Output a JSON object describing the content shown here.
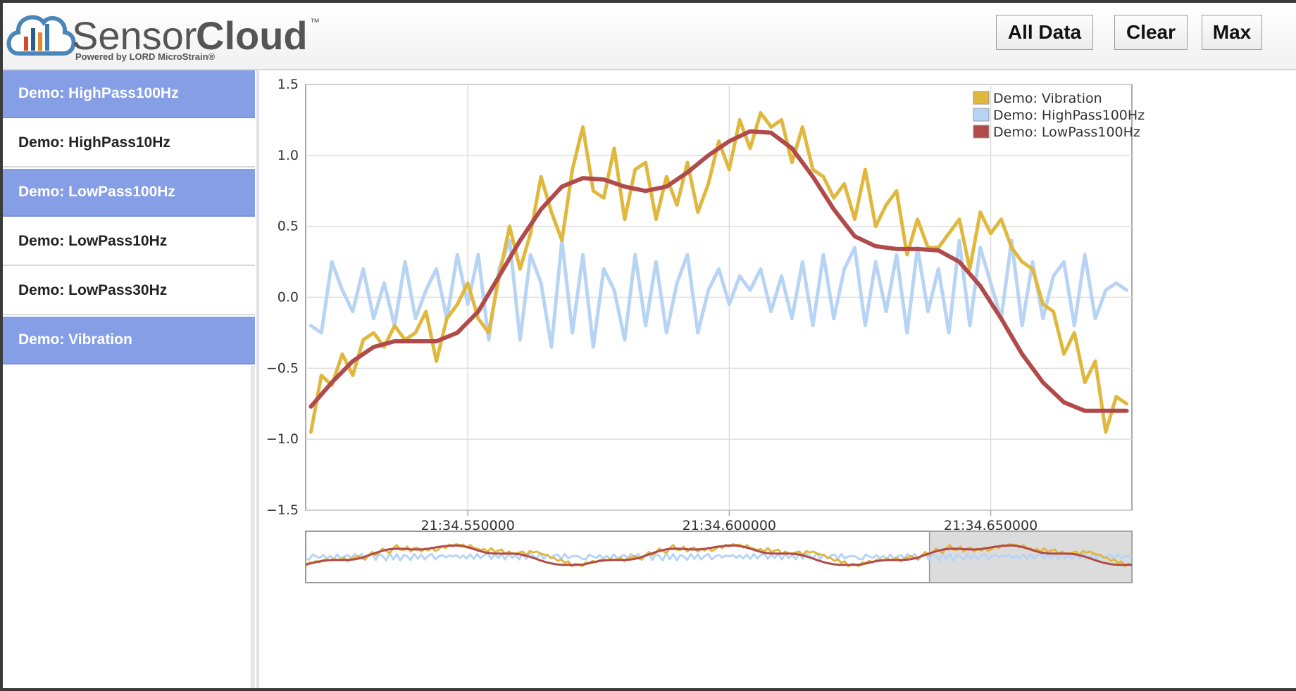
{
  "app": {
    "brand_light": "Sensor",
    "brand_bold": "Cloud",
    "brand_tm": "™",
    "powered_by": "Powered by LORD MicroStrain®"
  },
  "toolbar": {
    "all_data": "All Data",
    "clear": "Clear",
    "max": "Max"
  },
  "sidebar": {
    "items": [
      {
        "label": "Demo: HighPass100Hz",
        "selected": true
      },
      {
        "label": "Demo: HighPass10Hz",
        "selected": false
      },
      {
        "label": "Demo: LowPass100Hz",
        "selected": true
      },
      {
        "label": "Demo: LowPass10Hz",
        "selected": false
      },
      {
        "label": "Demo: LowPass30Hz",
        "selected": false
      },
      {
        "label": "Demo: Vibration",
        "selected": true
      }
    ]
  },
  "colors": {
    "selected_item": "#869ee6",
    "vibration": "#e0b83e",
    "highpass100": "#b8d4f5",
    "lowpass100": "#b14b4b",
    "navigator_window": "#dcdcdc"
  },
  "chart_data": {
    "type": "line",
    "ylim": [
      -1.5,
      1.5
    ],
    "y_ticks": [
      "1.5",
      "1.0",
      "0.5",
      "0.0",
      "−0.5",
      "−1.0",
      "−1.5"
    ],
    "x_ticks": [
      "21:34.550000",
      "21:34.600000",
      "21:34.650000"
    ],
    "x_tick_values": [
      34.55,
      34.6,
      34.65
    ],
    "xlim": [
      34.519,
      34.677
    ],
    "grid": true,
    "legend_position": "top-right",
    "series": [
      {
        "name": "Demo: Vibration",
        "color": "#e0b83e",
        "x": [
          34.52,
          34.522,
          34.524,
          34.526,
          34.528,
          34.53,
          34.532,
          34.534,
          34.536,
          34.538,
          34.54,
          34.542,
          34.544,
          34.546,
          34.548,
          34.55,
          34.552,
          34.554,
          34.556,
          34.558,
          34.56,
          34.562,
          34.564,
          34.566,
          34.568,
          34.57,
          34.572,
          34.574,
          34.576,
          34.578,
          34.58,
          34.582,
          34.584,
          34.586,
          34.588,
          34.59,
          34.592,
          34.594,
          34.596,
          34.598,
          34.6,
          34.602,
          34.604,
          34.606,
          34.608,
          34.61,
          34.612,
          34.614,
          34.616,
          34.618,
          34.62,
          34.622,
          34.624,
          34.626,
          34.628,
          34.63,
          34.632,
          34.634,
          34.636,
          34.638,
          34.64,
          34.642,
          34.644,
          34.646,
          34.648,
          34.65,
          34.652,
          34.654,
          34.656,
          34.658,
          34.66,
          34.662,
          34.664,
          34.666,
          34.668,
          34.67,
          34.672,
          34.674,
          34.676
        ],
        "values": [
          -0.95,
          -0.55,
          -0.62,
          -0.4,
          -0.55,
          -0.3,
          -0.25,
          -0.35,
          -0.2,
          -0.3,
          -0.25,
          -0.1,
          -0.45,
          -0.15,
          -0.05,
          0.1,
          -0.15,
          -0.25,
          0.15,
          0.5,
          0.2,
          0.45,
          0.85,
          0.6,
          0.4,
          0.9,
          1.2,
          0.75,
          0.7,
          1.05,
          0.55,
          0.9,
          0.95,
          0.55,
          0.85,
          0.65,
          0.95,
          0.6,
          0.8,
          1.1,
          0.9,
          1.25,
          1.05,
          1.3,
          1.2,
          1.25,
          0.95,
          1.2,
          0.9,
          0.85,
          0.7,
          0.8,
          0.55,
          0.9,
          0.5,
          0.65,
          0.75,
          0.3,
          0.55,
          0.35,
          0.35,
          0.45,
          0.55,
          0.2,
          0.6,
          0.45,
          0.55,
          0.35,
          0.25,
          0.2,
          -0.05,
          -0.1,
          -0.4,
          -0.25,
          -0.6,
          -0.45,
          -0.95,
          -0.7,
          -0.75
        ]
      },
      {
        "name": "Demo: HighPass100Hz",
        "color": "#b8d4f5",
        "x": [
          34.52,
          34.522,
          34.524,
          34.526,
          34.528,
          34.53,
          34.532,
          34.534,
          34.536,
          34.538,
          34.54,
          34.542,
          34.544,
          34.546,
          34.548,
          34.55,
          34.552,
          34.554,
          34.556,
          34.558,
          34.56,
          34.562,
          34.564,
          34.566,
          34.568,
          34.57,
          34.572,
          34.574,
          34.576,
          34.578,
          34.58,
          34.582,
          34.584,
          34.586,
          34.588,
          34.59,
          34.592,
          34.594,
          34.596,
          34.598,
          34.6,
          34.602,
          34.604,
          34.606,
          34.608,
          34.61,
          34.612,
          34.614,
          34.616,
          34.618,
          34.62,
          34.622,
          34.624,
          34.626,
          34.628,
          34.63,
          34.632,
          34.634,
          34.636,
          34.638,
          34.64,
          34.642,
          34.644,
          34.646,
          34.648,
          34.65,
          34.652,
          34.654,
          34.656,
          34.658,
          34.66,
          34.662,
          34.664,
          34.666,
          34.668,
          34.67,
          34.672,
          34.674,
          34.676
        ],
        "values": [
          -0.2,
          -0.25,
          0.25,
          0.05,
          -0.1,
          0.2,
          -0.15,
          0.1,
          -0.2,
          0.25,
          -0.15,
          0.05,
          0.2,
          -0.15,
          0.3,
          -0.05,
          0.3,
          -0.3,
          0.2,
          0.4,
          -0.3,
          0.3,
          0.1,
          -0.35,
          0.4,
          -0.25,
          0.3,
          -0.35,
          0.2,
          0.05,
          -0.3,
          0.3,
          -0.2,
          0.25,
          -0.25,
          0.1,
          0.3,
          -0.25,
          0.05,
          0.2,
          -0.05,
          0.15,
          0.05,
          0.2,
          -0.1,
          0.15,
          -0.15,
          0.25,
          -0.2,
          0.3,
          -0.15,
          0.2,
          0.35,
          -0.2,
          0.25,
          -0.1,
          0.3,
          -0.25,
          0.35,
          -0.1,
          0.2,
          -0.25,
          0.4,
          -0.2,
          0.35,
          0.1,
          -0.15,
          0.4,
          -0.2,
          0.25,
          -0.15,
          0.15,
          0.25,
          -0.2,
          0.3,
          -0.15,
          0.05,
          0.1,
          0.05
        ]
      },
      {
        "name": "Demo: LowPass100Hz",
        "color": "#b14b4b",
        "x": [
          34.52,
          34.524,
          34.528,
          34.532,
          34.536,
          34.54,
          34.544,
          34.548,
          34.552,
          34.556,
          34.56,
          34.564,
          34.568,
          34.572,
          34.576,
          34.58,
          34.584,
          34.588,
          34.592,
          34.596,
          34.6,
          34.604,
          34.608,
          34.612,
          34.616,
          34.62,
          34.624,
          34.628,
          34.632,
          34.636,
          34.64,
          34.644,
          34.648,
          34.652,
          34.656,
          34.66,
          34.664,
          34.668,
          34.672,
          34.676
        ],
        "values": [
          -0.77,
          -0.6,
          -0.45,
          -0.35,
          -0.31,
          -0.31,
          -0.31,
          -0.25,
          -0.1,
          0.15,
          0.4,
          0.62,
          0.78,
          0.84,
          0.83,
          0.78,
          0.75,
          0.78,
          0.88,
          1.0,
          1.1,
          1.17,
          1.16,
          1.05,
          0.85,
          0.62,
          0.43,
          0.36,
          0.34,
          0.34,
          0.33,
          0.25,
          0.08,
          -0.15,
          -0.4,
          -0.6,
          -0.74,
          -0.8,
          -0.8,
          -0.8
        ]
      }
    ]
  }
}
